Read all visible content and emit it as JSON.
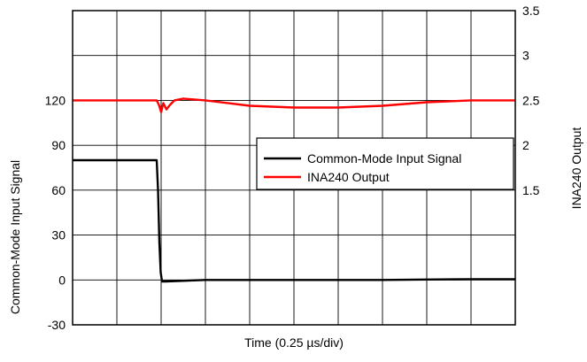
{
  "chart_data": {
    "type": "line",
    "xlabel": "Time (0.25 µs/div)",
    "ylabel_left": "Common-Mode Input Signal",
    "ylabel_right": "INA240 Output",
    "xlim": [
      0,
      10
    ],
    "x_divisions": 10,
    "ylim_left": [
      -30,
      180
    ],
    "yticks_left": [
      "-30",
      "0",
      "30",
      "60",
      "90",
      "120"
    ],
    "ylim_right": [
      0,
      3.5
    ],
    "yticks_right": [
      "1.5",
      "2",
      "2.5",
      "3",
      "3.5"
    ],
    "grid": true,
    "legend_position": "right",
    "series": [
      {
        "name": "Common-Mode Input Signal",
        "axis": "left",
        "color": "#000000",
        "points": [
          [
            0,
            80
          ],
          [
            1.9,
            80
          ],
          [
            1.93,
            60
          ],
          [
            1.96,
            25
          ],
          [
            1.99,
            5
          ],
          [
            2.02,
            -1
          ],
          [
            2.1,
            -1
          ],
          [
            3,
            0
          ],
          [
            5,
            0
          ],
          [
            7,
            0
          ],
          [
            9,
            0.5
          ],
          [
            10,
            0.5
          ]
        ]
      },
      {
        "name": "INA240 Output",
        "axis": "right",
        "color": "#ff0000",
        "points": [
          [
            0,
            2.5
          ],
          [
            1.9,
            2.5
          ],
          [
            1.95,
            2.45
          ],
          [
            2.0,
            2.37
          ],
          [
            2.05,
            2.47
          ],
          [
            2.12,
            2.4
          ],
          [
            2.2,
            2.45
          ],
          [
            2.3,
            2.5
          ],
          [
            2.5,
            2.52
          ],
          [
            3,
            2.5
          ],
          [
            4,
            2.44
          ],
          [
            5,
            2.42
          ],
          [
            6,
            2.42
          ],
          [
            7,
            2.44
          ],
          [
            8,
            2.48
          ],
          [
            9,
            2.5
          ],
          [
            10,
            2.5
          ]
        ]
      }
    ]
  }
}
